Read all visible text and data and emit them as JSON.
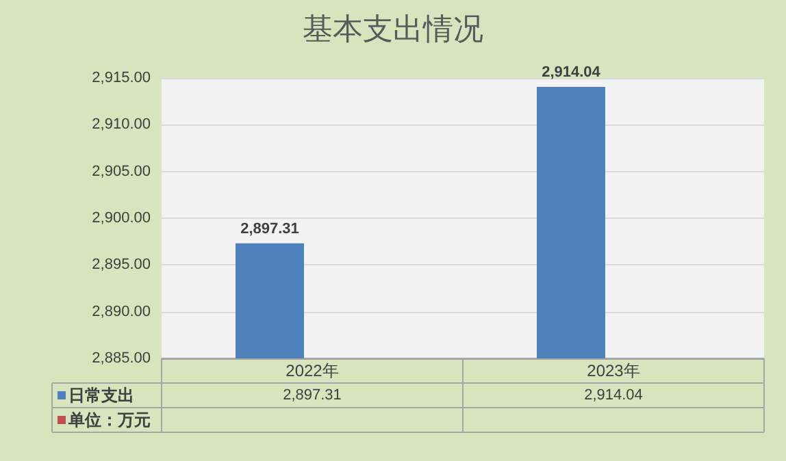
{
  "chart_data": {
    "type": "bar",
    "title": "基本支出情况",
    "categories": [
      "2022年",
      "2023年"
    ],
    "series": [
      {
        "name": "日常支出",
        "color": "#4f81bd",
        "values": [
          2897.31,
          2914.04
        ],
        "value_labels": [
          "2,897.31",
          "2,914.04"
        ]
      },
      {
        "name": "单位：万元",
        "color": "#c0504d",
        "values": [
          null,
          null
        ]
      }
    ],
    "ylim": [
      2885,
      2915
    ],
    "yticks": [
      {
        "value": 2885,
        "label": "2,885.00"
      },
      {
        "value": 2890,
        "label": "2,890.00"
      },
      {
        "value": 2895,
        "label": "2,895.00"
      },
      {
        "value": 2900,
        "label": "2,900.00"
      },
      {
        "value": 2905,
        "label": "2,905.00"
      },
      {
        "value": 2910,
        "label": "2,910.00"
      },
      {
        "value": 2915,
        "label": "2,915.00"
      }
    ],
    "grid": "y",
    "legend": "bottom"
  }
}
